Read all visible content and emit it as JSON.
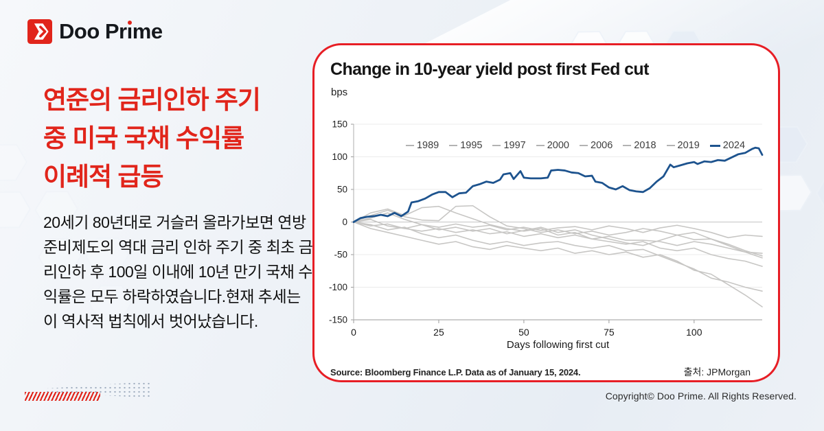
{
  "brand": {
    "name": "Doo Prime",
    "logo_text_pre": "Doo Pr",
    "logo_text_i": "ı",
    "logo_text_post": "me"
  },
  "headline": {
    "lines": [
      "연준의 금리인하 주기",
      "중 미국 국채 수익률",
      "이례적 급등"
    ]
  },
  "body_text": "20세기 80년대로 거슬러 올라가보면 연방준비제도의 역대 금리 인하 주기 중 최초 금리인하 후 100일 이내에 10년 만기 국채 수익률은 모두 하락하였습니다.현재 추세는 이 역사적 법칙에서 벗어났습니다.",
  "card": {
    "title": "Change in 10-year yield post first Fed cut",
    "y_unit": "bps",
    "x_label": "Days following first cut",
    "source_left": "Source: Bloomberg Finance L.P. Data as of January 15, 2024.",
    "source_right": "출처:  JPMorgan"
  },
  "footer": {
    "copyright": "Copyright© Doo Prime. All Rights Reserved."
  },
  "colors": {
    "accent_red": "#e1251b",
    "card_border": "#e71e25",
    "line_blue": "#1d538e",
    "line_gray": "#c7c6c4",
    "grid": "#ebebeb",
    "zero_line": "#c4c4c4",
    "axis": "#9b9b9b"
  },
  "chart_data": {
    "type": "line",
    "title": "Change in 10-year yield post first Fed cut",
    "xlabel": "Days following first cut",
    "ylabel": "bps",
    "xlim": [
      0,
      120
    ],
    "ylim": [
      -150,
      150
    ],
    "x_ticks": [
      0,
      25,
      50,
      75,
      100
    ],
    "y_ticks": [
      150,
      100,
      50,
      0,
      -50,
      -100,
      -150
    ],
    "grid": "horizontal",
    "legend_position": "top-center",
    "series": [
      {
        "name": "1989",
        "color": "#c7c6c4",
        "width": 1.6,
        "x": [
          0,
          5,
          10,
          15,
          20,
          25,
          30,
          35,
          40,
          45,
          50,
          55,
          60,
          65,
          70,
          75,
          80,
          85,
          90,
          95,
          100,
          105,
          110,
          115,
          120
        ],
        "y": [
          0,
          -6,
          -3,
          -10,
          -14,
          -10,
          -16,
          -12,
          -18,
          -15,
          -22,
          -18,
          -24,
          -20,
          -26,
          -22,
          -28,
          -28,
          -30,
          -36,
          -30,
          -34,
          -40,
          -46,
          -48
        ]
      },
      {
        "name": "1995",
        "color": "#c7c6c4",
        "width": 1.6,
        "x": [
          0,
          5,
          10,
          15,
          20,
          25,
          30,
          35,
          40,
          45,
          50,
          55,
          60,
          65,
          70,
          75,
          80,
          85,
          90,
          95,
          100,
          105,
          110,
          115,
          120
        ],
        "y": [
          0,
          6,
          14,
          4,
          -4,
          -8,
          -3,
          -8,
          -5,
          -12,
          -8,
          -13,
          -9,
          -7,
          -12,
          -6,
          -10,
          -16,
          -9,
          -5,
          -10,
          -16,
          -24,
          -20,
          -22
        ]
      },
      {
        "name": "1997",
        "color": "#c7c6c4",
        "width": 1.6,
        "x": [
          0,
          5,
          10,
          15,
          20,
          25,
          30,
          35,
          40,
          45,
          50,
          55,
          60,
          65,
          70,
          75,
          80,
          85,
          90,
          95,
          100,
          105,
          110,
          115,
          120
        ],
        "y": [
          0,
          10,
          18,
          8,
          3,
          2,
          24,
          25,
          8,
          -6,
          -10,
          -16,
          -12,
          -18,
          -14,
          -20,
          -16,
          -10,
          -14,
          -20,
          -27,
          -26,
          -34,
          -44,
          -52
        ]
      },
      {
        "name": "2000",
        "color": "#c7c6c4",
        "width": 1.6,
        "x": [
          0,
          5,
          10,
          15,
          20,
          25,
          30,
          35,
          40,
          45,
          50,
          55,
          60,
          65,
          70,
          75,
          80,
          85,
          90,
          95,
          100,
          105,
          110,
          115,
          120
        ],
        "y": [
          0,
          -4,
          -12,
          -8,
          -18,
          -24,
          -20,
          -28,
          -34,
          -30,
          -36,
          -32,
          -30,
          -36,
          -40,
          -36,
          -44,
          -42,
          -52,
          -62,
          -72,
          -86,
          -92,
          -100,
          -106
        ]
      },
      {
        "name": "2006",
        "color": "#c7c6c4",
        "width": 1.6,
        "x": [
          0,
          5,
          10,
          15,
          20,
          25,
          30,
          35,
          40,
          45,
          50,
          55,
          60,
          65,
          70,
          75,
          80,
          85,
          90,
          95,
          100,
          105,
          110,
          115,
          120
        ],
        "y": [
          0,
          4,
          -6,
          -10,
          -4,
          -12,
          -8,
          -14,
          -10,
          -18,
          -13,
          -8,
          -16,
          -12,
          -20,
          -26,
          -32,
          -36,
          -28,
          -20,
          -16,
          -26,
          -36,
          -46,
          -55
        ]
      },
      {
        "name": "2018",
        "color": "#c7c6c4",
        "width": 1.6,
        "x": [
          0,
          5,
          10,
          15,
          20,
          25,
          30,
          35,
          40,
          45,
          50,
          55,
          60,
          65,
          70,
          75,
          80,
          85,
          90,
          95,
          100,
          105,
          110,
          115,
          120
        ],
        "y": [
          0,
          -10,
          -16,
          -22,
          -28,
          -34,
          -30,
          -38,
          -42,
          -36,
          -40,
          -44,
          -40,
          -48,
          -44,
          -50,
          -46,
          -54,
          -50,
          -60,
          -74,
          -80,
          -96,
          -112,
          -130
        ]
      },
      {
        "name": "2019",
        "color": "#c7c6c4",
        "width": 1.6,
        "x": [
          0,
          5,
          10,
          15,
          20,
          25,
          30,
          35,
          40,
          45,
          50,
          55,
          60,
          65,
          70,
          75,
          80,
          85,
          90,
          95,
          100,
          105,
          110,
          115,
          120
        ],
        "y": [
          0,
          14,
          20,
          10,
          22,
          24,
          14,
          5,
          -4,
          -10,
          -14,
          -10,
          -20,
          -16,
          -26,
          -30,
          -34,
          -30,
          -40,
          -44,
          -40,
          -50,
          -56,
          -60,
          -68
        ]
      },
      {
        "name": "2024",
        "color": "#1d538e",
        "width": 2.8,
        "x": [
          0,
          2,
          4,
          6,
          8,
          10,
          12,
          14,
          16,
          17,
          19,
          21,
          23,
          25,
          27,
          29,
          31,
          33,
          35,
          37,
          39,
          41,
          43,
          44,
          46,
          47,
          49,
          50,
          52,
          55,
          57,
          58,
          60,
          62,
          64,
          66,
          68,
          70,
          71,
          73,
          75,
          77,
          79,
          81,
          83,
          85,
          87,
          89,
          91,
          93,
          94,
          96,
          98,
          100,
          101,
          103,
          105,
          107,
          109,
          111,
          113,
          115,
          116,
          117,
          118,
          119,
          120
        ],
        "y": [
          0,
          6,
          8,
          9,
          11,
          9,
          14,
          9,
          16,
          30,
          32,
          36,
          42,
          46,
          46,
          38,
          44,
          45,
          55,
          58,
          62,
          60,
          65,
          73,
          75,
          66,
          78,
          68,
          67,
          67,
          68,
          79,
          80,
          79,
          76,
          75,
          70,
          71,
          62,
          60,
          53,
          50,
          55,
          49,
          47,
          46,
          52,
          62,
          70,
          88,
          84,
          87,
          90,
          92,
          89,
          93,
          92,
          95,
          94,
          99,
          104,
          106,
          109,
          112,
          114,
          113,
          103
        ]
      }
    ]
  }
}
